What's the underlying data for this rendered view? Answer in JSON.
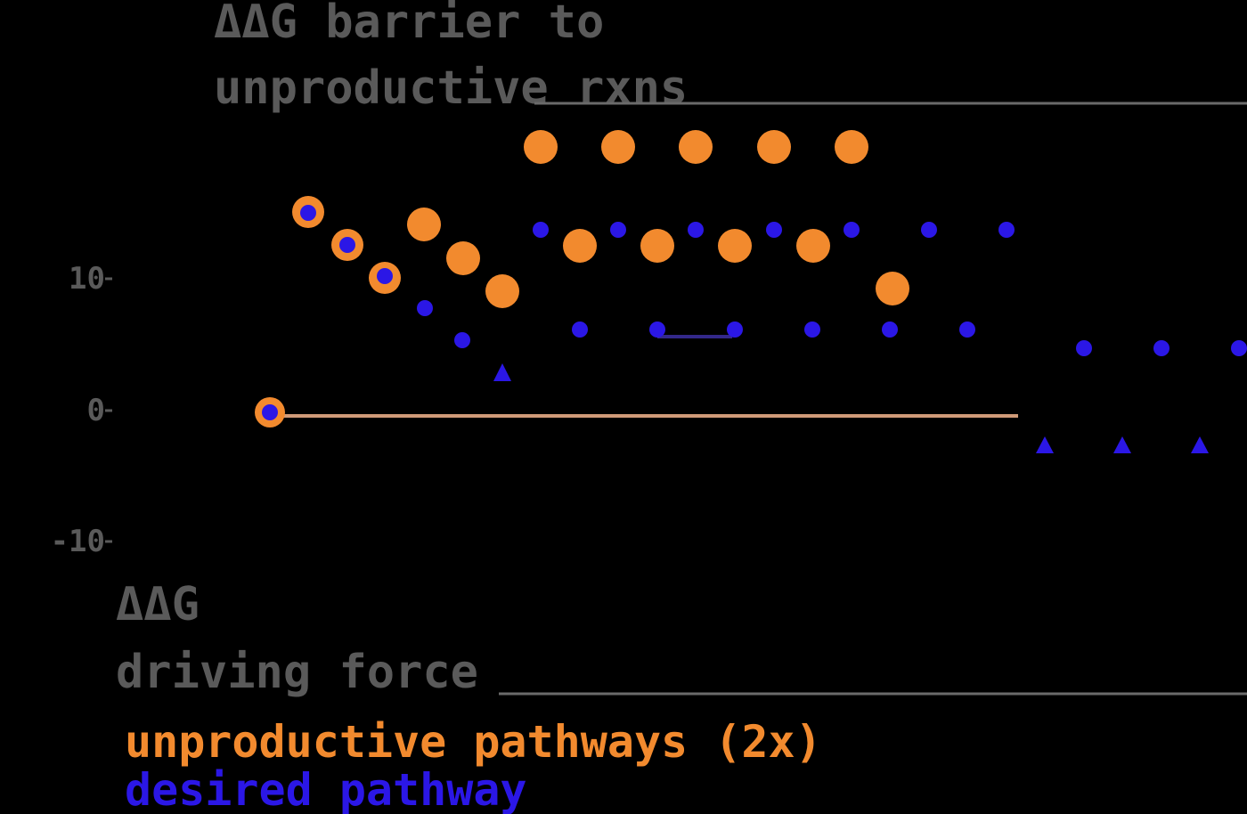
{
  "colors": {
    "background": "#000000",
    "text_gray": "#5a5a5a",
    "rule_gray": "#6a6a6a",
    "orange": "#f28a2e",
    "blue": "#2b17e6",
    "baseline": "#d09a78",
    "blue_dark_bar": "#33288a"
  },
  "top_annotation": {
    "line1": "ΔΔG barrier to",
    "line2": "unproductive rxns"
  },
  "bottom_annotation": {
    "line1": "ΔΔG",
    "line2": "driving force"
  },
  "y_ticks": [
    "10",
    "0",
    "-10"
  ],
  "legend": {
    "unproductive": "unproductive pathways (2x)",
    "desired": "desired pathway"
  }
}
